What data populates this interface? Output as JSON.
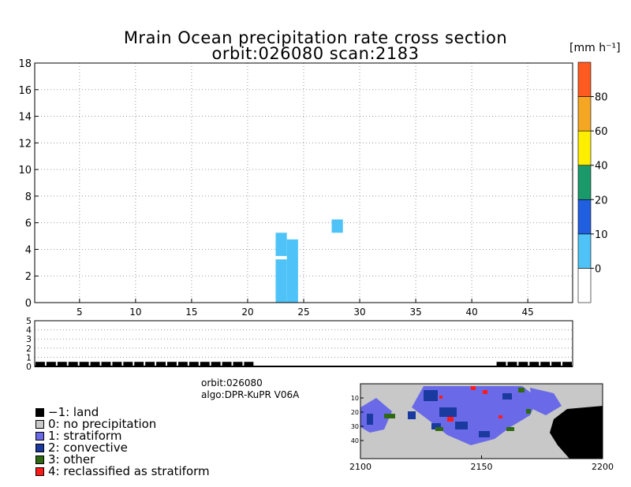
{
  "chart_data": [
    {
      "type": "heatmap",
      "title": "Mrain Ocean precipitation rate cross section",
      "subtitle": "orbit:026080    scan:2183",
      "xlim": [
        1,
        49
      ],
      "ylim": [
        0,
        18
      ],
      "x_ticks": [
        "5",
        "10",
        "15",
        "20",
        "25",
        "30",
        "35",
        "40",
        "45"
      ],
      "y_ticks": [
        "0",
        "2",
        "4",
        "6",
        "8",
        "10",
        "12",
        "14",
        "16",
        "18"
      ],
      "grid": true,
      "cells": [
        {
          "x0": 22.5,
          "x1": 23.5,
          "y0": 0,
          "y1": 3.25,
          "value": 5
        },
        {
          "x0": 22.5,
          "x1": 23.5,
          "y0": 3.5,
          "y1": 5.25,
          "value": 5
        },
        {
          "x0": 23.5,
          "x1": 24.5,
          "y0": 0,
          "y1": 4.75,
          "value": 5
        },
        {
          "x0": 27.5,
          "x1": 28.5,
          "y0": 5.25,
          "y1": 6.25,
          "value": 5
        }
      ]
    },
    {
      "type": "bar",
      "ylim": [
        0,
        5
      ],
      "y_ticks": [
        "0",
        "1",
        "2",
        "3",
        "4",
        "5"
      ],
      "grid": true,
      "land_bins": [
        1,
        2,
        3,
        4,
        5,
        6,
        7,
        8,
        9,
        10,
        11,
        12,
        13,
        14,
        15,
        16,
        17,
        18,
        19,
        20,
        43,
        44,
        45,
        46,
        47,
        48,
        49
      ],
      "bar_value": 0.5
    }
  ],
  "header": {
    "title": "Mrain Ocean precipitation rate cross section",
    "subtitle": "orbit:026080    scan:2183",
    "unit": "[mm h⁻¹]"
  },
  "colorbar": {
    "labels": [
      "0",
      "10",
      "20",
      "40",
      "60",
      "80"
    ],
    "colors": [
      "#ffffff",
      "#4fc3f7",
      "#1f5fe0",
      "#1a9a6a",
      "#ffee00",
      "#f5a623",
      "#ff5a1f"
    ]
  },
  "info": {
    "orbit": "orbit:026080",
    "algo": "algo:DPR-KuPR V06A"
  },
  "legend": [
    {
      "label": "−1: land",
      "color": "#000000"
    },
    {
      "label": "0: no precipitation",
      "color": "#c8c8c8"
    },
    {
      "label": "1: stratiform",
      "color": "#6a6ae8"
    },
    {
      "label": "2: convective",
      "color": "#1a3aa0"
    },
    {
      "label": "3: other",
      "color": "#2f6a12"
    },
    {
      "label": "4: reclassified as stratiform",
      "color": "#ff1a1a"
    }
  ],
  "map": {
    "x_ticks": [
      "2100",
      "2150",
      "2200"
    ],
    "y_ticks": [
      "10",
      "20",
      "30",
      "40"
    ]
  }
}
